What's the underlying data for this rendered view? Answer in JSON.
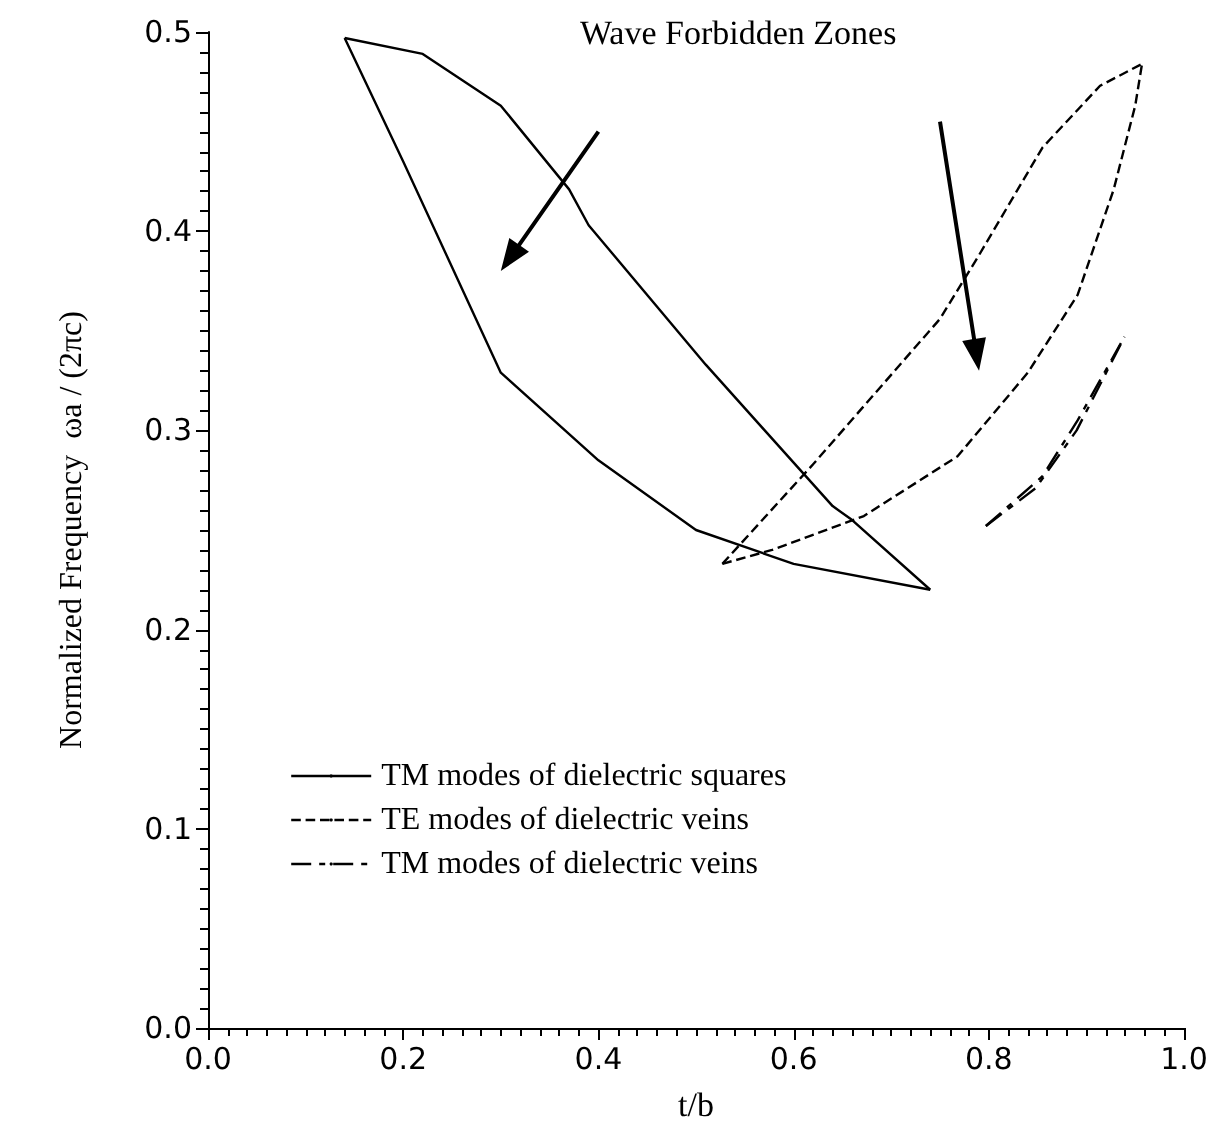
{
  "chart_data": {
    "type": "line",
    "xlabel": "t/b",
    "ylabel": "Normalized Frequency  ωa / (2πc)",
    "annotations": [
      "Wave Forbidden Zones"
    ],
    "xlim": [
      0,
      1
    ],
    "ylim": [
      0,
      0.5
    ],
    "xticks": [
      {
        "value": 0,
        "label": "0.0"
      },
      {
        "value": 0.2,
        "label": "0.2"
      },
      {
        "value": 0.4,
        "label": "0.4"
      },
      {
        "value": 0.6,
        "label": "0.6"
      },
      {
        "value": 0.8,
        "label": "0.8"
      },
      {
        "value": 1,
        "label": "1.0"
      }
    ],
    "yticks": [
      {
        "value": 0,
        "label": "0.0"
      },
      {
        "value": 0.1,
        "label": "0.1"
      },
      {
        "value": 0.2,
        "label": "0.2"
      },
      {
        "value": 0.3,
        "label": "0.3"
      },
      {
        "value": 0.4,
        "label": "0.4"
      },
      {
        "value": 0.5,
        "label": "0.5"
      }
    ],
    "grid": false,
    "legend": "bottom left",
    "marker": "none",
    "series": [
      {
        "name": "TM modes of dielectric squares",
        "color": "#000000",
        "line_style": "solid",
        "x": [
          0.14,
          0.22,
          0.3,
          0.37,
          0.39,
          0.51,
          0.64,
          0.66,
          0.74
        ],
        "values": [
          0.497,
          0.489,
          0.463,
          0.421,
          0.403,
          0.333,
          0.262,
          0.255,
          0.22
        ]
      },
      {
        "name": "TE modes of dielectric veins",
        "color": "#000000",
        "line_style": "dashed",
        "x": [
          0.527,
          0.62,
          0.75,
          0.79,
          0.855,
          0.914,
          0.957
        ],
        "values": [
          0.233,
          0.283,
          0.356,
          0.388,
          0.442,
          0.473,
          0.484
        ]
      },
      {
        "name": "TM modes of dielectric veins",
        "color": "#000000",
        "line_style": "dashdot",
        "x": [
          0.797,
          0.855,
          0.891,
          0.939
        ],
        "values": [
          0.252,
          0.277,
          0.305,
          0.347
        ]
      },
      {
        "color": "#000000",
        "line_style": "solid",
        "x": [
          0.14,
          0.2,
          0.3,
          0.4,
          0.5,
          0.6,
          0.74
        ],
        "values": [
          0.497,
          0.435,
          0.329,
          0.285,
          0.25,
          0.233,
          0.22
        ]
      },
      {
        "color": "#000000",
        "line_style": "dashed",
        "x": [
          0.527,
          0.578,
          0.672,
          0.768,
          0.84,
          0.891,
          0.928,
          0.95,
          0.957
        ],
        "values": [
          0.233,
          0.24,
          0.257,
          0.287,
          0.329,
          0.368,
          0.421,
          0.463,
          0.484
        ]
      },
      {
        "color": "#000000",
        "line_style": "dashdot",
        "x": [
          0.797,
          0.848,
          0.89,
          0.939
        ],
        "values": [
          0.252,
          0.271,
          0.3,
          0.347
        ]
      }
    ]
  }
}
